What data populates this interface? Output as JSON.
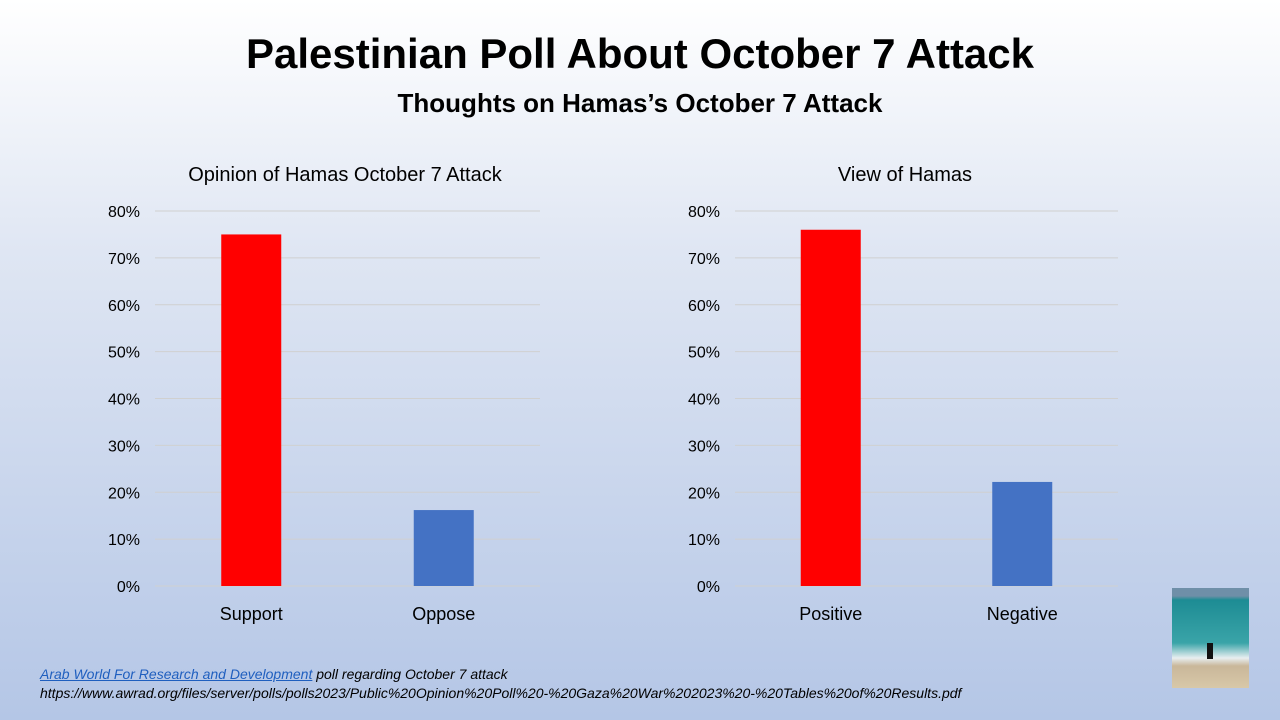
{
  "header": {
    "title": "Palestinian Poll About October 7 Attack",
    "subtitle": "Thoughts on Hamas’s October 7 Attack"
  },
  "chart_data": [
    {
      "type": "bar",
      "title": "Opinion of Hamas October 7 Attack",
      "categories": [
        "Support",
        "Oppose"
      ],
      "values": [
        75,
        16.2
      ],
      "colors": [
        "#ff0000",
        "#4472c4"
      ],
      "ylim": [
        0,
        80
      ],
      "yticks": [
        "0%",
        "10%",
        "20%",
        "30%",
        "40%",
        "50%",
        "60%",
        "70%",
        "80%"
      ],
      "grid": true,
      "xlabel": "",
      "ylabel": ""
    },
    {
      "type": "bar",
      "title": "View of Hamas",
      "categories": [
        "Positive",
        "Negative"
      ],
      "values": [
        76,
        22.2
      ],
      "colors": [
        "#ff0000",
        "#4472c4"
      ],
      "ylim": [
        0,
        80
      ],
      "yticks": [
        "0%",
        "10%",
        "20%",
        "30%",
        "40%",
        "50%",
        "60%",
        "70%",
        "80%"
      ],
      "grid": true,
      "xlabel": "",
      "ylabel": ""
    }
  ],
  "footer": {
    "link": "Arab World For Research and Development",
    "text": " poll regarding October 7 attack",
    "url": "https://www.awrad.org/files/server/polls/polls2023/Public%20Opinion%20Poll%20-%20Gaza%20War%202023%20-%20Tables%20of%20Results.pdf"
  }
}
